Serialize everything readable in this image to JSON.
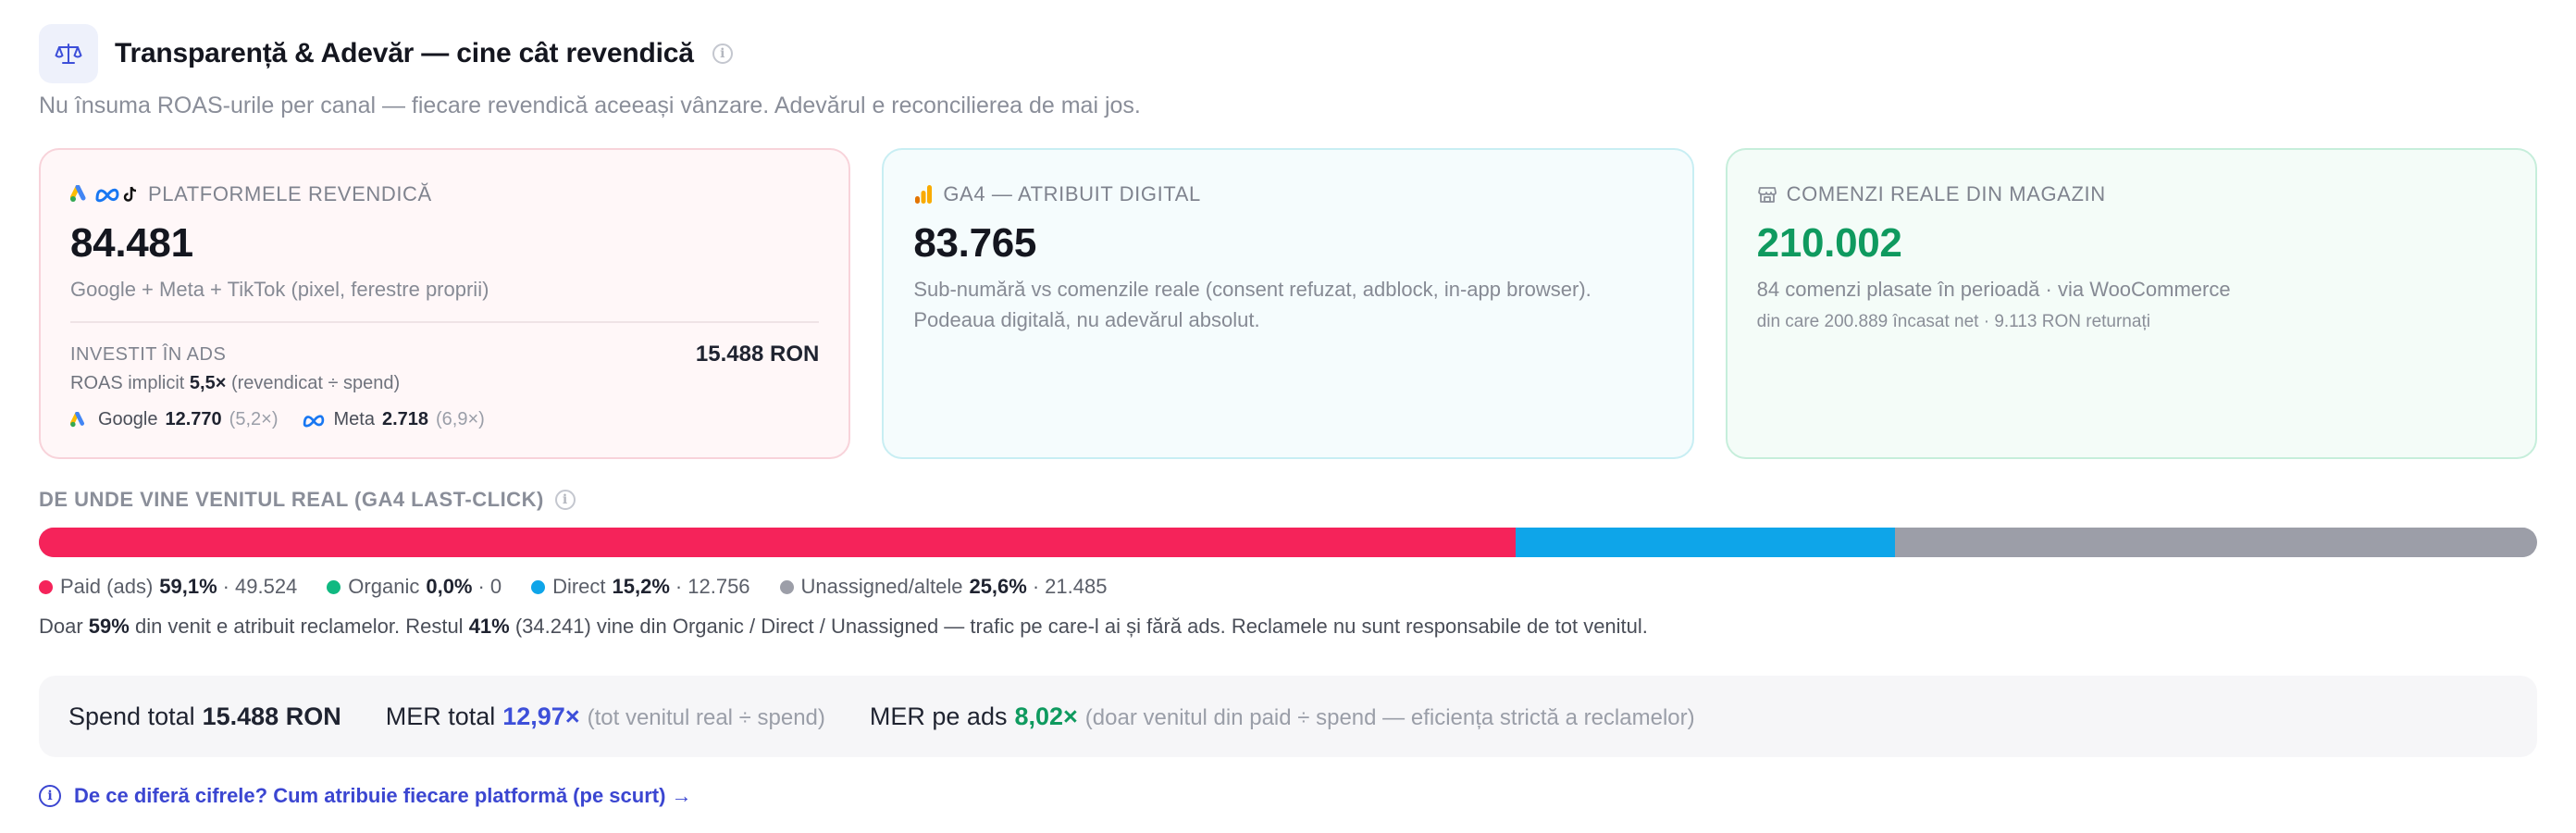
{
  "header": {
    "title": "Transparență & Adevăr — cine cât revendică",
    "subtitle": "Nu însuma ROAS-urile per canal — fiecare revendică aceeași vânzare. Adevărul e reconcilierea de mai jos.",
    "icon": "scale-icon"
  },
  "cards": {
    "platforms": {
      "label": "PLATFORMELE REVENDICĂ",
      "value": "84.481",
      "desc": "Google + Meta + TikTok (pixel, ferestre proprii)",
      "invest_label": "INVESTIT ÎN ADS",
      "invest_value": "15.488 RON",
      "roas_prefix": "ROAS implicit",
      "roas_value": "5,5×",
      "roas_suffix": "(revendicat ÷ spend)",
      "google_label": "Google",
      "google_value": "12.770",
      "google_mult": "(5,2×)",
      "meta_label": "Meta",
      "meta_value": "2.718",
      "meta_mult": "(6,9×)"
    },
    "ga4": {
      "label": "GA4 — ATRIBUIT DIGITAL",
      "value": "83.765",
      "desc1": "Sub-numără vs comenzile reale (consent refuzat, adblock, in-app browser).",
      "desc2": "Podeaua digitală, nu adevărul absolut."
    },
    "orders": {
      "label": "COMENZI REALE DIN MAGAZIN",
      "value": "210.002",
      "desc": "84 comenzi plasate în perioadă · via WooCommerce",
      "small": "din care 200.889 încasat net · 9.113 RON returnați"
    }
  },
  "revenue": {
    "label": "DE UNDE VINE VENITUL REAL (GA4 LAST-CLICK)",
    "segments": [
      {
        "name": "Paid (ads)",
        "pct": "59,1%",
        "amount": "49.524",
        "share": 0.591,
        "color": "#f5235a"
      },
      {
        "name": "Organic",
        "pct": "0,0%",
        "amount": "0",
        "share": 0.0,
        "color": "#10b981"
      },
      {
        "name": "Direct",
        "pct": "15,2%",
        "amount": "12.756",
        "share": 0.152,
        "color": "#0ea5e9"
      },
      {
        "name": "Unassigned/altele",
        "pct": "25,6%",
        "amount": "21.485",
        "share": 0.256,
        "color": "#9c9ea8"
      }
    ],
    "note": {
      "p1": "Doar ",
      "b1": "59%",
      "p2": " din venit e atribuit reclamelor. Restul ",
      "b2": "41%",
      "p3": " (34.241) vine din Organic / Direct / Unassigned — trafic pe care-l ai și fără ads. Reclamele nu sunt responsabile de tot venitul."
    }
  },
  "mer": {
    "spend_label": "Spend total",
    "spend_value": "15.488 RON",
    "mer_label": "MER total",
    "mer_value": "12,97×",
    "mer_hint": "(tot venitul real ÷ spend)",
    "ads_label": "MER pe ads",
    "ads_value": "8,02×",
    "ads_hint": "(doar venitul din paid ÷ spend — eficiența strictă a reclamelor)"
  },
  "link": {
    "text": "De ce diferă cifrele? Cum atribuie fiecare platformă (pe scurt) →"
  },
  "colors": {
    "accent_blue": "#3d4fd9",
    "accent_green": "#0f9a5f",
    "paid": "#f5235a",
    "organic": "#10b981",
    "direct": "#0ea5e9",
    "unassigned": "#9c9ea8"
  }
}
